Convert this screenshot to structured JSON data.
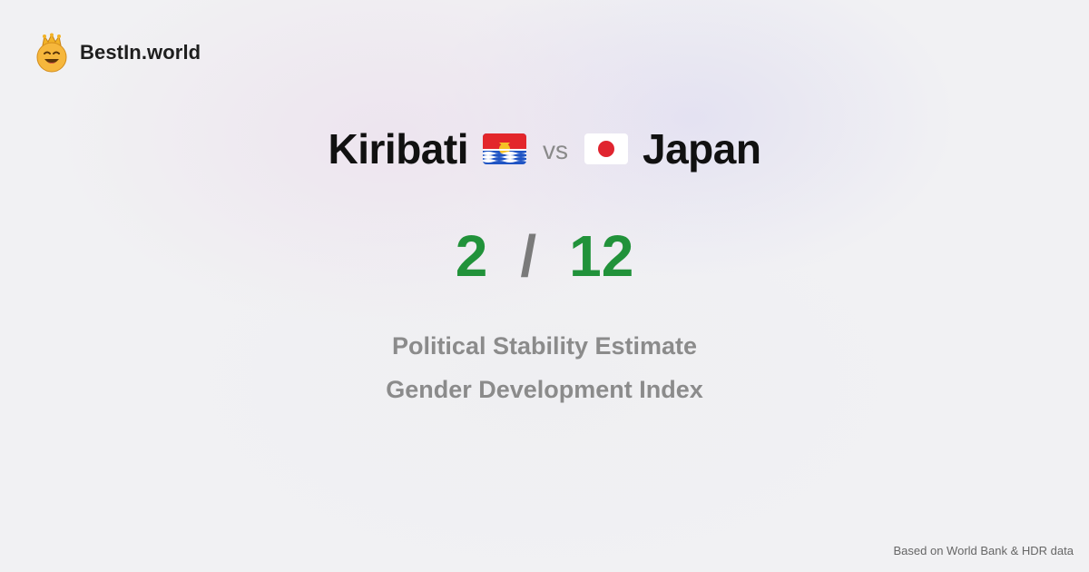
{
  "brand": {
    "name": "BestIn.world",
    "logo_icon": "crowned-smiley-icon"
  },
  "comparison": {
    "left_country": "Kiribati",
    "left_flag_icon": "kiribati-flag-icon",
    "vs_label": "vs",
    "right_country": "Japan",
    "right_flag_icon": "japan-flag-icon"
  },
  "scores": {
    "left": "2",
    "separator": "/",
    "right": "12"
  },
  "metrics": [
    "Political Stability Estimate",
    "Gender Development Index"
  ],
  "footer": {
    "source": "Based on World Bank & HDR data"
  },
  "colors": {
    "score_green": "#21923a",
    "slash_gray": "#7a7a7a",
    "metric_gray": "#8b8b8b",
    "title_black": "#111111"
  }
}
